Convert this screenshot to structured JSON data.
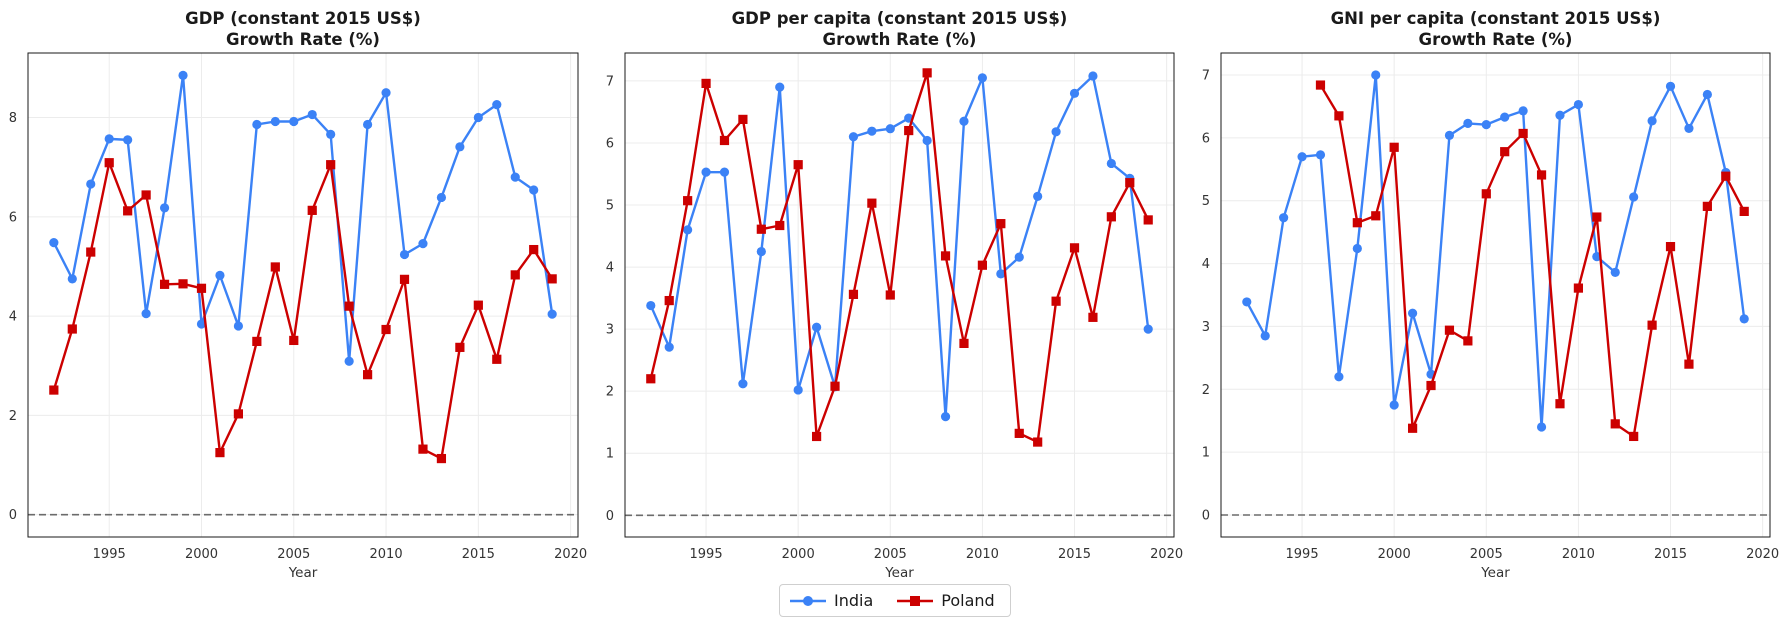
{
  "chart_data": [
    {
      "type": "line",
      "title": "GDP (constant 2015 US$)\nGrowth Rate (%)",
      "xlabel": "Year",
      "ylabel": "",
      "xlim": [
        1990.6,
        2020.4
      ],
      "ylim": [
        -0.45,
        9.3
      ],
      "xticks": [
        1995,
        2000,
        2005,
        2010,
        2015,
        2020
      ],
      "yticks": [
        0,
        2,
        4,
        6,
        8
      ],
      "grid": true,
      "zero_line": true,
      "series": [
        {
          "name": "India",
          "color": "#3b82f6",
          "marker": "circle",
          "x": [
            1992,
            1993,
            1994,
            1995,
            1996,
            1997,
            1998,
            1999,
            2000,
            2001,
            2002,
            2003,
            2004,
            2005,
            2006,
            2007,
            2008,
            2009,
            2010,
            2011,
            2012,
            2013,
            2014,
            2015,
            2016,
            2017,
            2018,
            2019
          ],
          "y": [
            5.48,
            4.75,
            6.66,
            7.57,
            7.55,
            4.05,
            6.18,
            8.85,
            3.84,
            4.82,
            3.8,
            7.86,
            7.92,
            7.92,
            8.06,
            7.66,
            3.09,
            7.86,
            8.5,
            5.24,
            5.46,
            6.39,
            7.41,
            8.0,
            8.26,
            6.8,
            6.54,
            4.04
          ]
        },
        {
          "name": "Poland",
          "color": "#cc0000",
          "marker": "square",
          "x": [
            1992,
            1993,
            1994,
            1995,
            1996,
            1997,
            1998,
            1999,
            2000,
            2001,
            2002,
            2003,
            2004,
            2005,
            2006,
            2007,
            2008,
            2009,
            2010,
            2011,
            2012,
            2013,
            2014,
            2015,
            2016,
            2017,
            2018,
            2019
          ],
          "y": [
            2.51,
            3.74,
            5.29,
            7.09,
            6.12,
            6.44,
            4.64,
            4.65,
            4.56,
            1.25,
            2.03,
            3.49,
            4.99,
            3.51,
            6.13,
            7.05,
            4.2,
            2.82,
            3.73,
            4.74,
            1.32,
            1.13,
            3.37,
            4.22,
            3.13,
            4.83,
            5.34,
            4.75
          ]
        }
      ]
    },
    {
      "type": "line",
      "title": "GDP per capita (constant 2015 US$)\nGrowth Rate (%)",
      "xlabel": "Year",
      "ylabel": "",
      "xlim": [
        1990.6,
        2020.4
      ],
      "ylim": [
        -0.35,
        7.45
      ],
      "xticks": [
        1995,
        2000,
        2005,
        2010,
        2015,
        2020
      ],
      "yticks": [
        0,
        1,
        2,
        3,
        4,
        5,
        6,
        7
      ],
      "grid": true,
      "zero_line": true,
      "series": [
        {
          "name": "India",
          "color": "#3b82f6",
          "marker": "circle",
          "x": [
            1992,
            1993,
            1994,
            1995,
            1996,
            1997,
            1998,
            1999,
            2000,
            2001,
            2002,
            2003,
            2004,
            2005,
            2006,
            2007,
            2008,
            2009,
            2010,
            2011,
            2012,
            2013,
            2014,
            2015,
            2016,
            2017,
            2018,
            2019
          ],
          "y": [
            3.38,
            2.71,
            4.6,
            5.53,
            5.53,
            2.12,
            4.25,
            6.9,
            2.02,
            3.03,
            2.07,
            6.1,
            6.19,
            6.23,
            6.4,
            6.04,
            1.59,
            6.35,
            7.05,
            3.89,
            4.16,
            5.14,
            6.18,
            6.8,
            7.08,
            5.67,
            5.43,
            3.0
          ]
        },
        {
          "name": "Poland",
          "color": "#cc0000",
          "marker": "square",
          "x": [
            1992,
            1993,
            1994,
            1995,
            1996,
            1997,
            1998,
            1999,
            2000,
            2001,
            2002,
            2003,
            2004,
            2005,
            2006,
            2007,
            2008,
            2009,
            2010,
            2011,
            2012,
            2013,
            2014,
            2015,
            2016,
            2017,
            2018,
            2019
          ],
          "y": [
            2.2,
            3.46,
            5.07,
            6.96,
            6.04,
            6.38,
            4.61,
            4.67,
            5.65,
            1.27,
            2.08,
            3.56,
            5.03,
            3.55,
            6.2,
            7.13,
            4.18,
            2.77,
            4.03,
            4.7,
            1.32,
            1.18,
            3.45,
            4.31,
            3.19,
            4.81,
            5.36,
            4.76
          ]
        }
      ]
    },
    {
      "type": "line",
      "title": "GNI per capita (constant 2015 US$)\nGrowth Rate (%)",
      "xlabel": "Year",
      "ylabel": "",
      "xlim": [
        1990.6,
        2020.4
      ],
      "ylim": [
        -0.35,
        7.35
      ],
      "xticks": [
        1995,
        2000,
        2005,
        2010,
        2015,
        2020
      ],
      "yticks": [
        0,
        1,
        2,
        3,
        4,
        5,
        6,
        7
      ],
      "grid": true,
      "zero_line": true,
      "series": [
        {
          "name": "India",
          "color": "#3b82f6",
          "marker": "circle",
          "x": [
            1992,
            1993,
            1994,
            1995,
            1996,
            1997,
            1998,
            1999,
            2000,
            2001,
            2002,
            2003,
            2004,
            2005,
            2006,
            2007,
            2008,
            2009,
            2010,
            2011,
            2012,
            2013,
            2014,
            2015,
            2016,
            2017,
            2018,
            2019
          ],
          "y": [
            3.39,
            2.85,
            4.73,
            5.7,
            5.73,
            2.2,
            4.24,
            7.0,
            1.75,
            3.21,
            2.24,
            6.04,
            6.23,
            6.21,
            6.33,
            6.43,
            1.4,
            6.36,
            6.53,
            4.11,
            3.86,
            5.06,
            6.27,
            6.82,
            6.15,
            6.69,
            5.45,
            3.12
          ]
        },
        {
          "name": "Poland",
          "color": "#cc0000",
          "marker": "square",
          "x": [
            1996,
            1997,
            1998,
            1999,
            2000,
            2001,
            2002,
            2003,
            2004,
            2005,
            2006,
            2007,
            2008,
            2009,
            2010,
            2011,
            2012,
            2013,
            2014,
            2015,
            2016,
            2017,
            2018,
            2019
          ],
          "y": [
            6.84,
            6.35,
            4.65,
            4.76,
            5.85,
            1.38,
            2.06,
            2.94,
            2.77,
            5.11,
            5.78,
            6.07,
            5.41,
            1.77,
            3.61,
            4.74,
            1.45,
            1.25,
            3.02,
            4.27,
            2.4,
            4.91,
            5.39,
            4.83
          ]
        }
      ]
    }
  ],
  "legend": {
    "items": [
      {
        "label": "India",
        "color": "#3b82f6",
        "marker": "circle"
      },
      {
        "label": "Poland",
        "color": "#cc0000",
        "marker": "square"
      }
    ]
  }
}
